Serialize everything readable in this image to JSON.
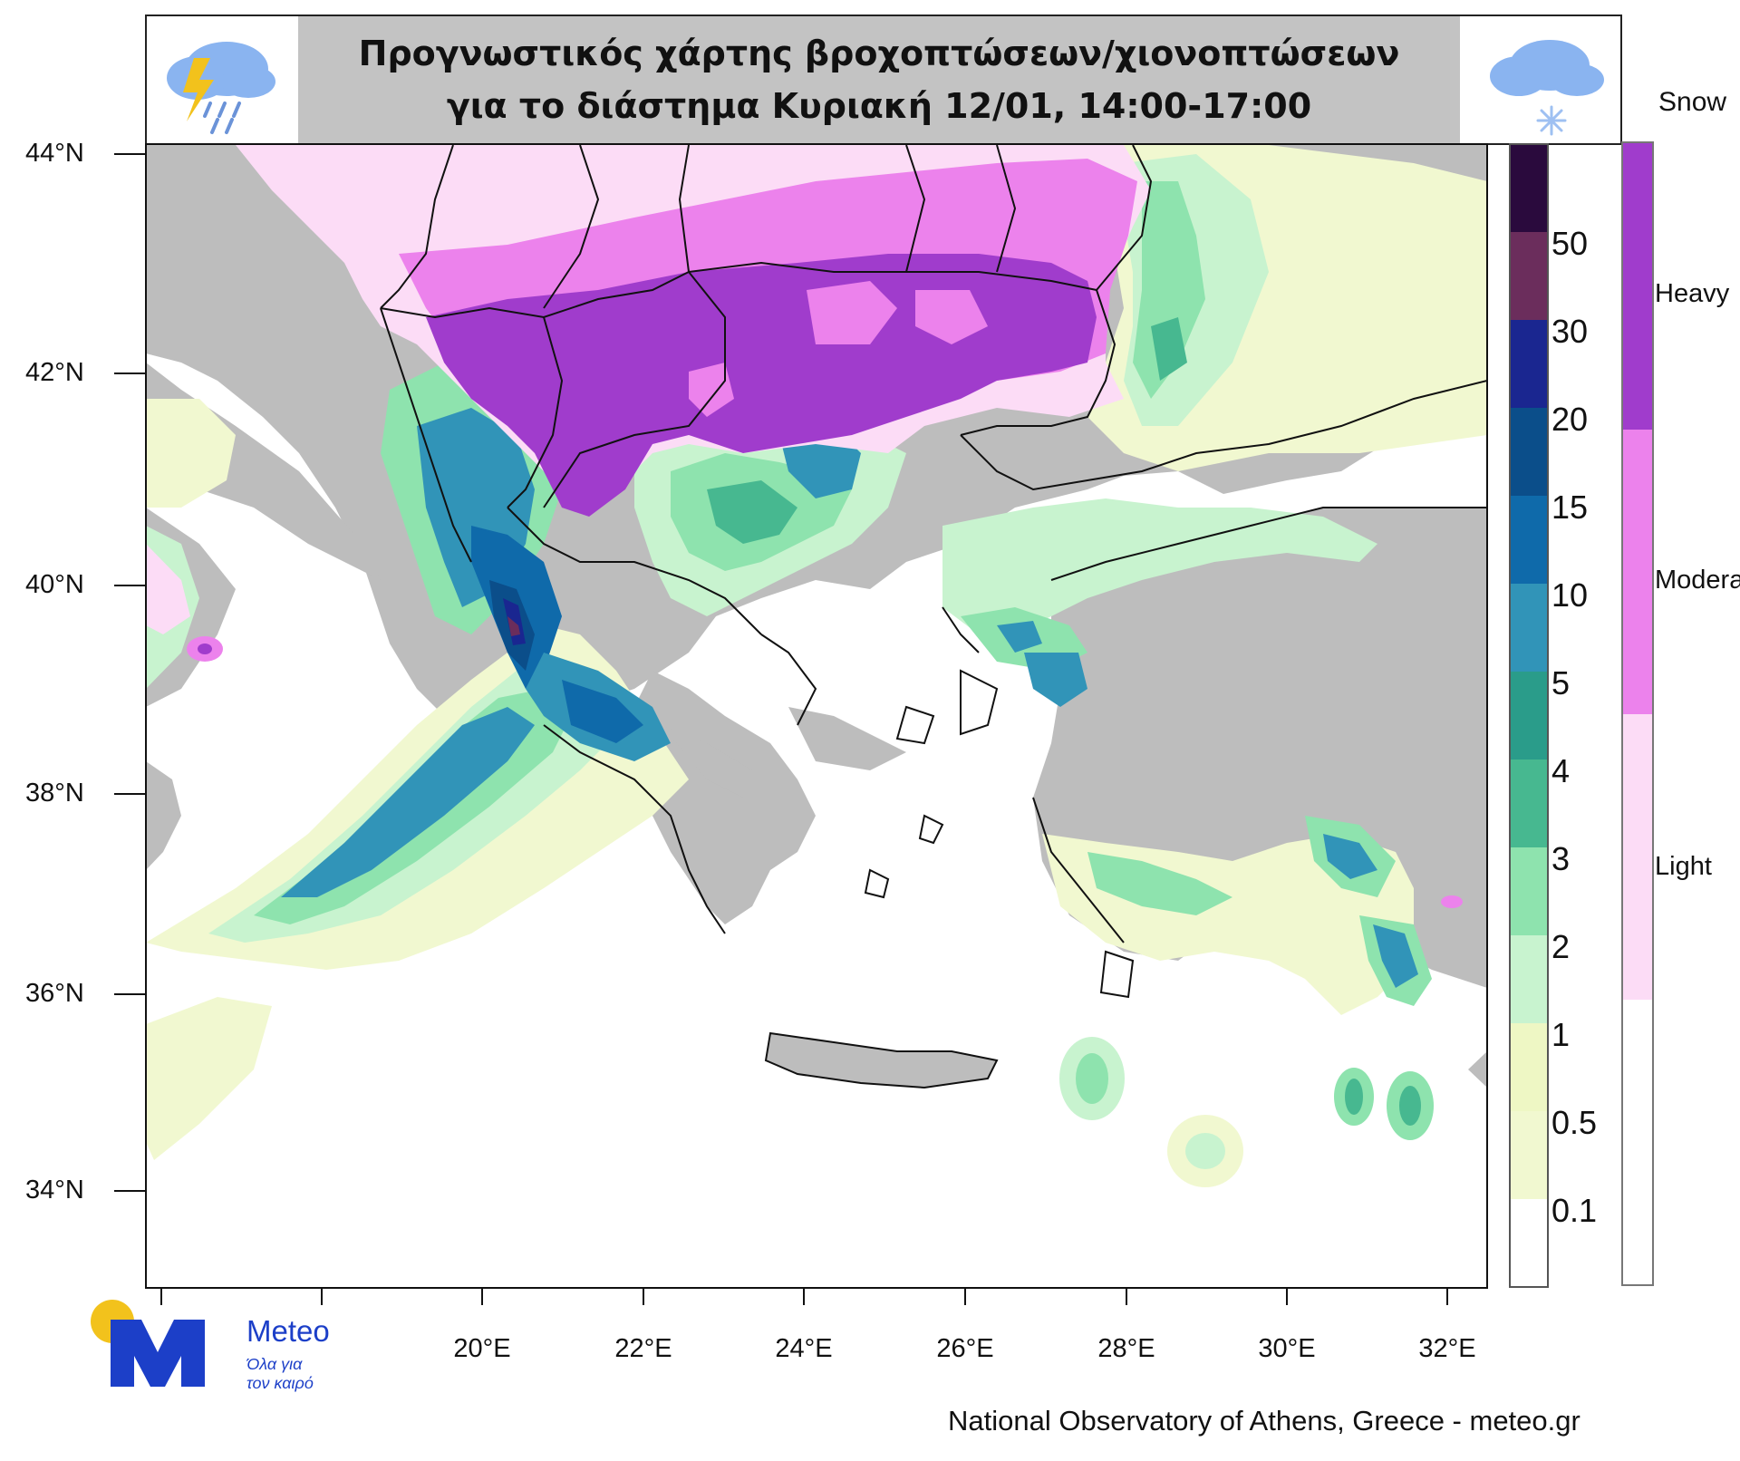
{
  "title": {
    "line1": "Προγνωστικός χάρτης βροχοπτώσεων/χιονοπτώσεων",
    "line2": "για το διάστημα Κυριακή 12/01, 14:00-17:00"
  },
  "icons": {
    "left": "thunderstorm-rain-icon",
    "right": "snow-cloud-icon"
  },
  "rain_legend": {
    "levels": [
      "50",
      "30",
      "20",
      "15",
      "10",
      "5",
      "4",
      "3",
      "2",
      "1",
      "0.5",
      "0.1"
    ],
    "colors": [
      "#2a0a3d",
      "#6b2d5c",
      "#1a2690",
      "#0b4e8a",
      "#0f6aaa",
      "#3194b8",
      "#2a9c8a",
      "#47b890",
      "#8ee3ae",
      "#c8f3cf",
      "#eef7c4",
      "#f1f8d0",
      "#ffffff"
    ]
  },
  "snow_legend": {
    "title": "Snow",
    "items": [
      {
        "label": "Heavy",
        "color": "#a03ccc"
      },
      {
        "label": "Moderate",
        "color": "#ec82ec"
      },
      {
        "label": "Light",
        "color": "#fcdcf6"
      },
      {
        "label": "",
        "color": "#ffffff"
      }
    ]
  },
  "map": {
    "lat_labels": [
      "44°N",
      "42°N",
      "40°N",
      "38°N",
      "36°N",
      "34°N"
    ],
    "lon_labels": [
      "20°E",
      "22°E",
      "24°E",
      "26°E",
      "28°E",
      "30°E",
      "32°E"
    ],
    "colors": {
      "land": "#bdbdbd",
      "sea": "#ffffff",
      "border": "#111111"
    }
  },
  "logo": {
    "brand": "Meteo",
    "tagline1": "Όλα για",
    "tagline2": "τον καιρό"
  },
  "credit": "National Observatory of Athens, Greece - meteo.gr"
}
